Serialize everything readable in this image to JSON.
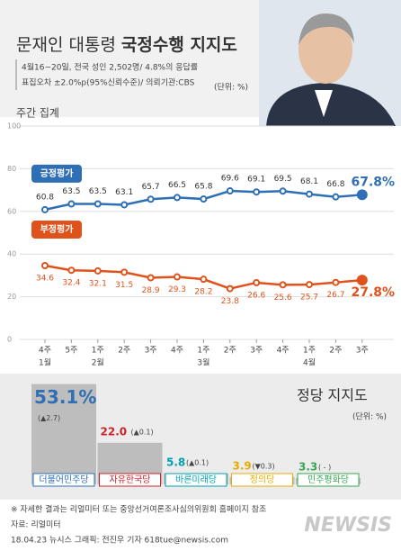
{
  "chart_data": [
    {
      "type": "line",
      "title": "문재인 대통령",
      "title_emphasis": "국정수행 지지도",
      "notes": [
        "4월16~20일, 전국 성인 2,502명/ 4.8%의 응답률",
        "표집오차 ±2.0%p(95%신뢰수준)/ 의뢰기관:CBS"
      ],
      "unit": "(단위: %)",
      "y_label": "주간 집계",
      "categories": [
        "4주",
        "5주",
        "1주",
        "2주",
        "3주",
        "4주",
        "1주",
        "2주",
        "3주",
        "4주",
        "1주",
        "2주",
        "3주"
      ],
      "month_labels": [
        "1월",
        null,
        "2월",
        null,
        null,
        null,
        "3월",
        null,
        null,
        null,
        "4월",
        null,
        null
      ],
      "series": [
        {
          "name": "긍정평가",
          "color": "#2f6fb5",
          "values": [
            60.8,
            63.5,
            63.5,
            63.1,
            65.7,
            66.5,
            65.8,
            69.6,
            69.1,
            69.5,
            68.1,
            66.8,
            67.8
          ],
          "value_labels": [
            "60.8",
            "63.5",
            "63.5",
            "63.1",
            "65.7",
            "66.5",
            "65.8",
            "69.6",
            "69.1",
            "69.5",
            "68.1",
            "66.8",
            "67.8%"
          ]
        },
        {
          "name": "부정평가",
          "color": "#e0521c",
          "values": [
            34.6,
            32.4,
            32.1,
            31.5,
            28.9,
            29.3,
            28.2,
            23.8,
            26.6,
            25.6,
            25.7,
            26.7,
            27.8
          ],
          "value_labels": [
            "34.6",
            "32.4",
            "32.1",
            "31.5",
            "28.9",
            "29.3",
            "28.2",
            "23.8",
            "26.6",
            "25.6",
            "25.7",
            "26.7",
            "27.8%"
          ]
        }
      ],
      "ylim": [
        0,
        100
      ],
      "yticks": [
        0,
        20,
        40,
        60,
        80,
        100
      ],
      "grid": true
    },
    {
      "type": "bar",
      "title": "정당 지지도",
      "unit": "(단위: %)",
      "categories": [
        "더불어민주당",
        "자유한국당",
        "바른미래당",
        "정의당",
        "민주평화당"
      ],
      "values": [
        53.1,
        22.0,
        5.8,
        3.9,
        3.3
      ],
      "value_labels": [
        "53.1%",
        "22.0",
        "5.8",
        "3.9",
        "3.3"
      ],
      "changes": [
        "(▲2.7)",
        "(▲0.1)",
        "(▲0.1)",
        "(▼0.3)",
        "( - )"
      ],
      "colors": [
        "#2f6fb5",
        "#cc2229",
        "#00a0b0",
        "#e8ac00",
        "#3aa655"
      ],
      "bar_color": "#bdbdbd"
    }
  ],
  "footnote": "※ 자세한 결과는 리얼미터 또는 중앙선거여론조사심의위원회 홈페이지 참조",
  "source": "자료: 리얼미터",
  "credit": "18.04.23 뉴시스 그래픽: 전진우 기자 618tue@newsis.com",
  "watermark": "NEWSIS"
}
